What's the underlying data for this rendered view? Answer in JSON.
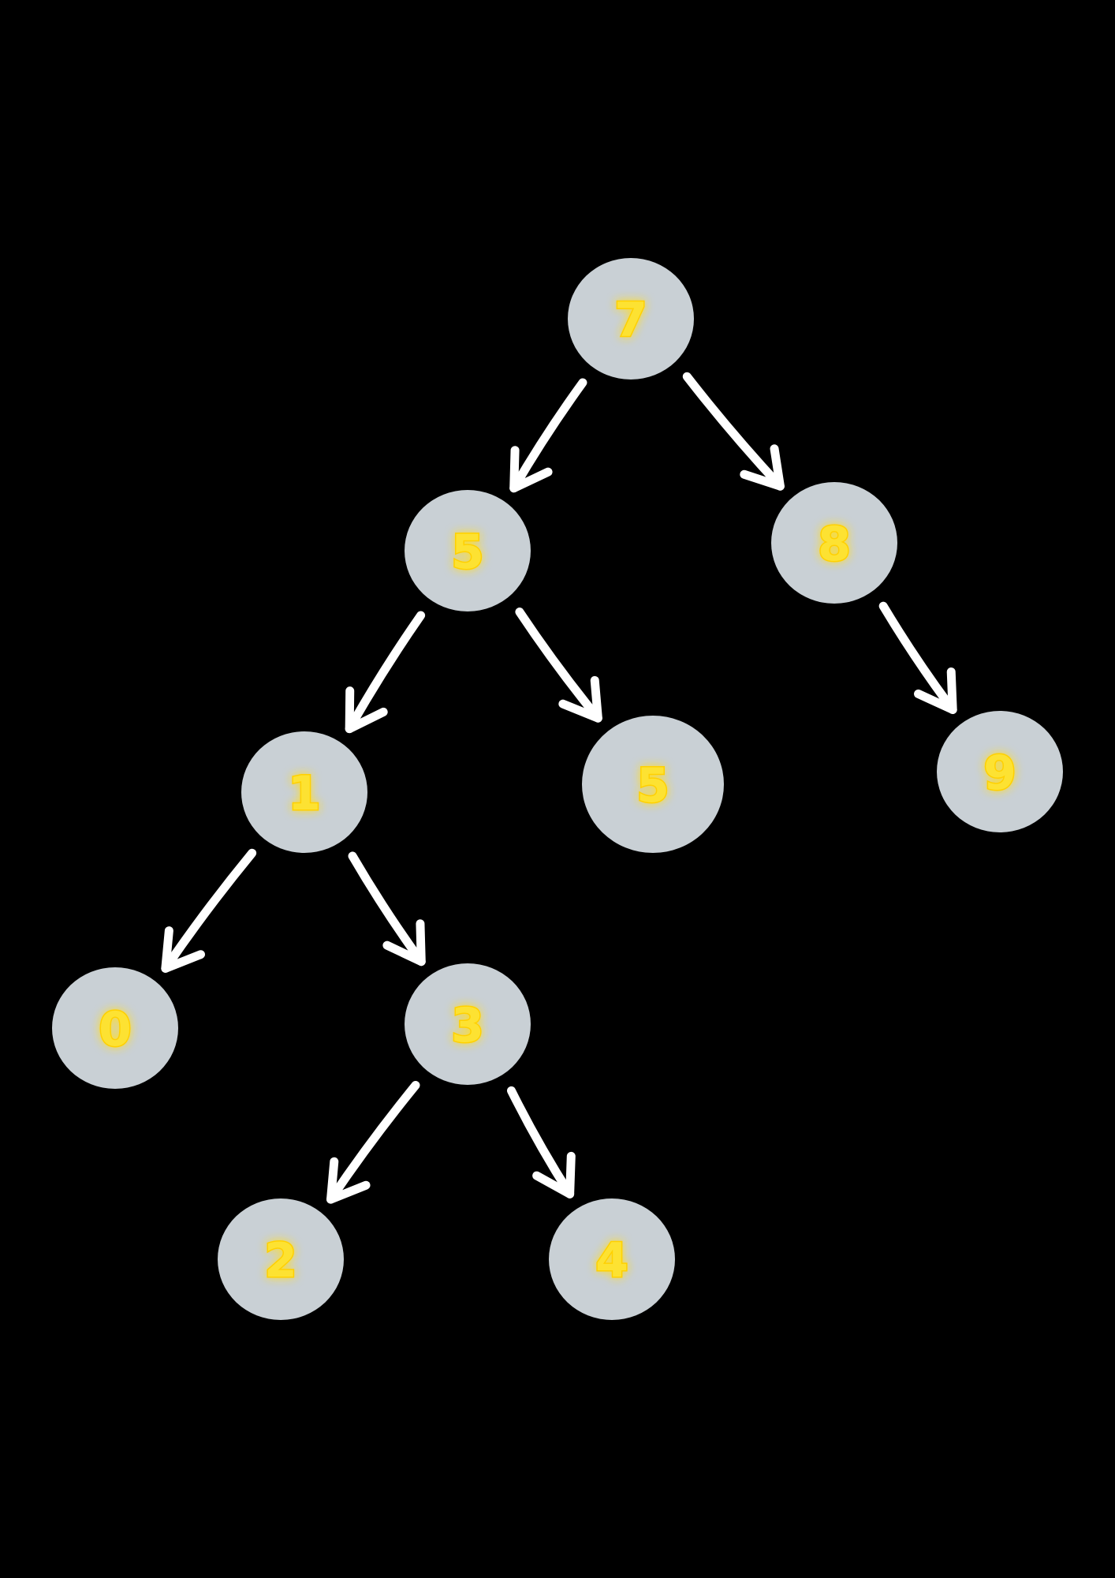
{
  "colors": {
    "background": "#000000",
    "node_fill": "#c9d0d5",
    "label_color": "#fde233",
    "label_glow": "#ffd000",
    "arrow_color": "#ffffff"
  },
  "tree": {
    "nodes": [
      {
        "id": "n7",
        "label": "7"
      },
      {
        "id": "n5a",
        "label": "5"
      },
      {
        "id": "n8",
        "label": "8"
      },
      {
        "id": "n1",
        "label": "1"
      },
      {
        "id": "n5b",
        "label": "5"
      },
      {
        "id": "n9",
        "label": "9"
      },
      {
        "id": "n0",
        "label": "0"
      },
      {
        "id": "n3",
        "label": "3"
      },
      {
        "id": "n2",
        "label": "2"
      },
      {
        "id": "n4",
        "label": "4"
      }
    ],
    "edges": [
      {
        "from": "n7",
        "to": "n5a"
      },
      {
        "from": "n7",
        "to": "n8"
      },
      {
        "from": "n5a",
        "to": "n1"
      },
      {
        "from": "n5a",
        "to": "n5b"
      },
      {
        "from": "n8",
        "to": "n9"
      },
      {
        "from": "n1",
        "to": "n0"
      },
      {
        "from": "n1",
        "to": "n3"
      },
      {
        "from": "n3",
        "to": "n2"
      },
      {
        "from": "n3",
        "to": "n4"
      }
    ]
  }
}
